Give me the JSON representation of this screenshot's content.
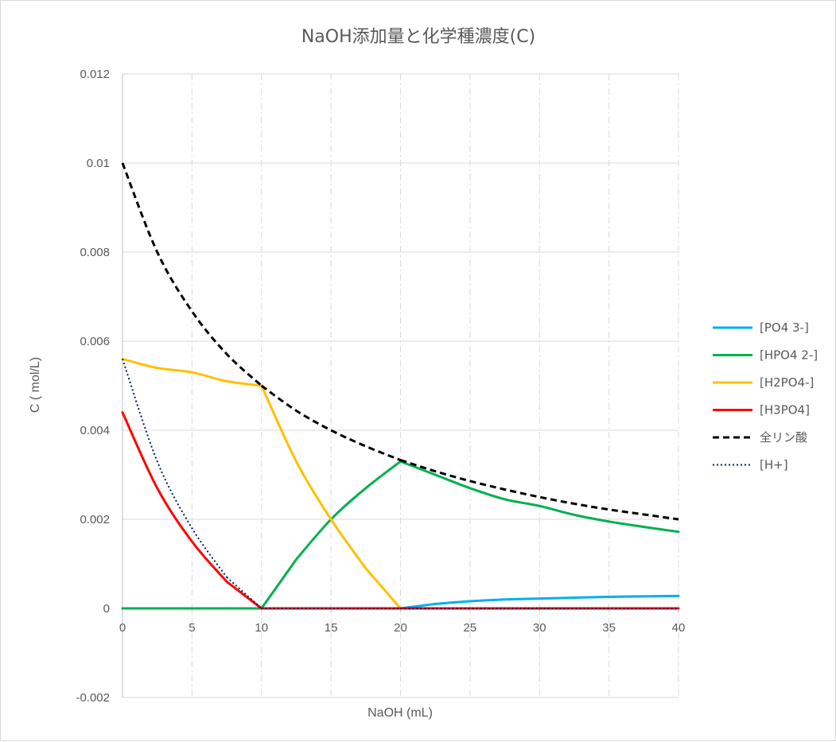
{
  "chart_data": {
    "type": "line",
    "title": "NaOH添加量と化学種濃度(C)",
    "xlabel": "NaOH (mL)",
    "ylabel": "C ( mol/L)",
    "xlim": [
      0,
      40
    ],
    "ylim": [
      -0.002,
      0.012
    ],
    "x_ticks": [
      "0",
      "5",
      "10",
      "15",
      "20",
      "25",
      "30",
      "35",
      "40"
    ],
    "y_ticks": [
      "-0.002",
      "0",
      "0.002",
      "0.004",
      "0.006",
      "0.008",
      "0.01",
      "0.012"
    ],
    "grid": {
      "horizontal": true,
      "vertical": true
    },
    "legend_position": "right",
    "x": [
      0,
      2.5,
      5,
      7.5,
      10,
      12.5,
      15,
      17.5,
      20,
      22.5,
      25,
      27.5,
      30,
      32.5,
      35,
      37.5,
      40
    ],
    "series": [
      {
        "name": "[PO4 3-]",
        "color": "#00b0f0",
        "style": "solid",
        "values": [
          0,
          0,
          0,
          0,
          0,
          0,
          0,
          0,
          0,
          0.0001,
          0.00016,
          0.0002,
          0.00022,
          0.00024,
          0.00026,
          0.00027,
          0.00028
        ]
      },
      {
        "name": "[HPO4 2-]",
        "color": "#00b050",
        "style": "solid",
        "values": [
          0,
          0,
          0,
          0,
          0,
          0.0011,
          0.002,
          0.0027,
          0.0033,
          0.003,
          0.0027,
          0.00245,
          0.0023,
          0.0021,
          0.00195,
          0.00183,
          0.00172
        ]
      },
      {
        "name": "[H2PO4-]",
        "color": "#ffc000",
        "style": "solid",
        "values": [
          0.0056,
          0.0054,
          0.0053,
          0.0051,
          0.005,
          0.0033,
          0.002,
          0.0009,
          0,
          0,
          0,
          0,
          0,
          0,
          0,
          0,
          0
        ]
      },
      {
        "name": "[H3PO4]",
        "color": "#ff0000",
        "style": "solid",
        "values": [
          0.0044,
          0.0027,
          0.0015,
          0.0006,
          0,
          0,
          0,
          0,
          0,
          0,
          0,
          0,
          0,
          0,
          0,
          0,
          0
        ]
      },
      {
        "name": "全リン酸",
        "color": "#000000",
        "style": "dashed",
        "values": [
          0.01,
          0.008,
          0.00667,
          0.00571,
          0.005,
          0.00444,
          0.004,
          0.00364,
          0.00333,
          0.00308,
          0.00286,
          0.00267,
          0.0025,
          0.00235,
          0.00222,
          0.00211,
          0.002
        ]
      },
      {
        "name": "[H+]",
        "color": "#002060",
        "style": "dotted",
        "values": [
          0.0056,
          0.0033,
          0.0018,
          0.0007,
          0,
          0,
          0,
          0,
          0,
          0,
          0,
          0,
          0,
          0,
          0,
          0,
          0
        ]
      }
    ]
  }
}
